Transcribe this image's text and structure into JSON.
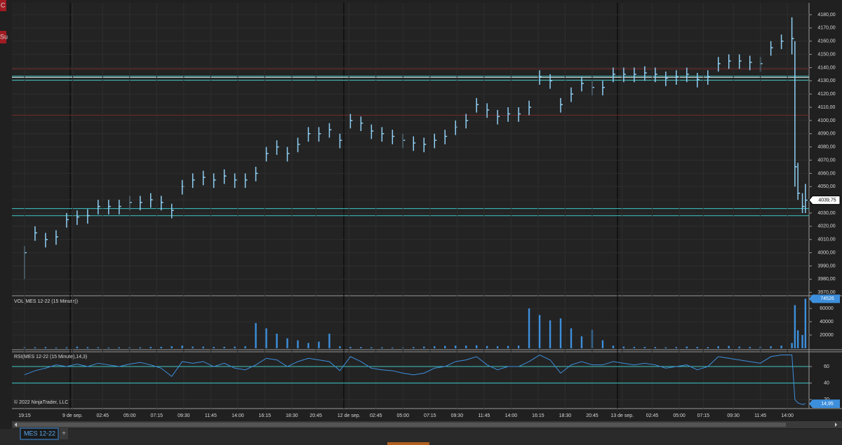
{
  "ui": {
    "tab": "MES 12-22",
    "add_tab": "+",
    "copyright": "© 2022 NinjaTrader, LLC",
    "left_buttons": [
      "C",
      "Su"
    ]
  },
  "chart_data": [
    {
      "type": "ohlc",
      "color": "#8fd0f5",
      "x": [
        0,
        3.5,
        7,
        10.5,
        14,
        17.5,
        21,
        24.5,
        28,
        31.5,
        35,
        38.5,
        42,
        45.5,
        49,
        52.5,
        56,
        59.5,
        63,
        66.5,
        70,
        73.5,
        77,
        80.5,
        84,
        87.5,
        91,
        94.5,
        98,
        101.5,
        105,
        108.5,
        112,
        115.5,
        119,
        122.5,
        126,
        129.5,
        133,
        136.5,
        140,
        143.5,
        147,
        150.5,
        154,
        157.5,
        161,
        164.5,
        168,
        171.5,
        175,
        178.5,
        182,
        185.5,
        189,
        192.5,
        196,
        199.5,
        203,
        206.5,
        210,
        213.5,
        217,
        220.5,
        224,
        227.5,
        231,
        234.5,
        238,
        241.5,
        245,
        248.5,
        252,
        255.5,
        256.5,
        257.5,
        259,
        260
      ],
      "high": [
        4005,
        4020,
        4015,
        4017,
        4030,
        4032,
        4033,
        4040,
        4040,
        4040,
        4043,
        4043,
        4045,
        4043,
        4037,
        4055,
        4060,
        4062,
        4060,
        4063,
        4060,
        4060,
        4065,
        4080,
        4085,
        4080,
        4087,
        4095,
        4095,
        4098,
        4090,
        4105,
        4103,
        4097,
        4095,
        4093,
        4090,
        4088,
        4087,
        4090,
        4093,
        4100,
        4105,
        4117,
        4113,
        4108,
        4110,
        4110,
        4115,
        4138,
        4135,
        4117,
        4125,
        4133,
        4130,
        4130,
        4140,
        4140,
        4140,
        4141,
        4140,
        4137,
        4138,
        4140,
        4136,
        4138,
        4148,
        4150,
        4150,
        4149,
        4148,
        4160,
        4165,
        4178,
        4160,
        4068,
        4045,
        4052
      ],
      "low": [
        3980,
        4009,
        4004,
        4006,
        4019,
        4021,
        4022,
        4029,
        4029,
        4029,
        4032,
        4032,
        4034,
        4032,
        4026,
        4044,
        4049,
        4051,
        4049,
        4052,
        4049,
        4049,
        4054,
        4069,
        4074,
        4069,
        4076,
        4084,
        4084,
        4087,
        4079,
        4094,
        4092,
        4086,
        4084,
        4082,
        4079,
        4077,
        4076,
        4079,
        4082,
        4089,
        4094,
        4106,
        4102,
        4097,
        4099,
        4099,
        4104,
        4127,
        4124,
        4106,
        4114,
        4122,
        4119,
        4119,
        4129,
        4129,
        4129,
        4130,
        4129,
        4126,
        4127,
        4129,
        4125,
        4127,
        4137,
        4139,
        4139,
        4138,
        4137,
        4149,
        4154,
        4150,
        4050,
        4040,
        4030,
        4030
      ],
      "close": [
        4000,
        4015,
        4010,
        4012,
        4025,
        4027,
        4028,
        4035,
        4035,
        4035,
        4038,
        4038,
        4040,
        4038,
        4032,
        4050,
        4055,
        4057,
        4055,
        4058,
        4055,
        4055,
        4060,
        4075,
        4080,
        4075,
        4082,
        4090,
        4090,
        4093,
        4085,
        4100,
        4098,
        4092,
        4090,
        4088,
        4085,
        4083,
        4082,
        4085,
        4088,
        4095,
        4100,
        4112,
        4108,
        4103,
        4105,
        4105,
        4110,
        4133,
        4130,
        4112,
        4120,
        4128,
        4125,
        4125,
        4135,
        4135,
        4135,
        4136,
        4135,
        4132,
        4133,
        4135,
        4131,
        4133,
        4143,
        4145,
        4145,
        4144,
        4143,
        4155,
        4160,
        4162,
        4065,
        4045,
        4035,
        4039.75
      ],
      "current_value": {
        "value": 4039.75,
        "label": "4039,75"
      },
      "levels": [
        {
          "value": 4139,
          "color": "#7a2a2a"
        },
        {
          "value": 4132.6,
          "color": "#e8e8e8"
        },
        {
          "value": 4133.5,
          "color": "#3fc7c7"
        },
        {
          "value": 4130.5,
          "color": "#3fc7c7"
        },
        {
          "value": 4104,
          "color": "#7a2a2a"
        },
        {
          "value": 4033.4,
          "color": "#3fc7c7"
        },
        {
          "value": 4028,
          "color": "#3fc7c7"
        }
      ],
      "xlim": [
        -4.2,
        261.2
      ],
      "ylim": [
        3968,
        4189
      ],
      "yticks": [
        {
          "value": 3970,
          "label": "3970,00"
        },
        {
          "value": 3980,
          "label": "3980,00"
        },
        {
          "value": 3990,
          "label": "3990,00"
        },
        {
          "value": 4000,
          "label": "4000,00"
        },
        {
          "value": 4010,
          "label": "4010,00"
        },
        {
          "value": 4020,
          "label": "4020,00"
        },
        {
          "value": 4030,
          "label": "4030,00"
        },
        {
          "value": 4040,
          "label": "4040,00"
        },
        {
          "value": 4050,
          "label": "4050,00"
        },
        {
          "value": 4060,
          "label": "4060,00"
        },
        {
          "value": 4070,
          "label": "4070,00"
        },
        {
          "value": 4080,
          "label": "4080,00"
        },
        {
          "value": 4090,
          "label": "4090,00"
        },
        {
          "value": 4100,
          "label": "4100,00"
        },
        {
          "value": 4110,
          "label": "4110,00"
        },
        {
          "value": 4120,
          "label": "4120,00"
        },
        {
          "value": 4130,
          "label": "4130,00"
        },
        {
          "value": 4140,
          "label": "4140,00"
        },
        {
          "value": 4150,
          "label": "4150,00"
        },
        {
          "value": 4160,
          "label": "4160,00"
        },
        {
          "value": 4170,
          "label": "4170,00"
        },
        {
          "value": 4180,
          "label": "4180,00"
        }
      ]
    },
    {
      "type": "bar",
      "title": "VOL(MES 12-22 (15 Minute))",
      "color": "#3d8fdc",
      "x": [
        0,
        3.5,
        7,
        10.5,
        14,
        17.5,
        21,
        24.5,
        28,
        31.5,
        35,
        38.5,
        42,
        45.5,
        49,
        52.5,
        56,
        59.5,
        63,
        66.5,
        70,
        73.5,
        77,
        80.5,
        84,
        87.5,
        91,
        94.5,
        98,
        101.5,
        105,
        108.5,
        112,
        115.5,
        119,
        122.5,
        126,
        129.5,
        133,
        136.5,
        140,
        143.5,
        147,
        150.5,
        154,
        157.5,
        161,
        164.5,
        168,
        171.5,
        175,
        178.5,
        182,
        185.5,
        189,
        192.5,
        196,
        199.5,
        203,
        206.5,
        210,
        213.5,
        217,
        220.5,
        224,
        227.5,
        231,
        234.5,
        238,
        241.5,
        245,
        248.5,
        252,
        255.5,
        256.5,
        257.5,
        259,
        260
      ],
      "values": [
        2000,
        1500,
        1800,
        1200,
        1500,
        2500,
        1800,
        1500,
        1200,
        1500,
        1800,
        1500,
        2000,
        2200,
        3000,
        4000,
        2500,
        2500,
        2000,
        2200,
        2500,
        3000,
        38000,
        30000,
        22000,
        15000,
        12000,
        8000,
        10000,
        22000,
        3000,
        2000,
        1800,
        1500,
        1500,
        1200,
        1500,
        1800,
        2500,
        3000,
        3500,
        4000,
        4000,
        4500,
        3500,
        3000,
        3500,
        4000,
        60000,
        50000,
        42000,
        45000,
        30000,
        18000,
        28000,
        12000,
        4000,
        2500,
        2000,
        2000,
        1800,
        1500,
        1800,
        2500,
        2000,
        1800,
        3000,
        3500,
        2500,
        2000,
        2500,
        3000,
        4000,
        8000,
        65000,
        27000,
        20000,
        74526
      ],
      "current_value": 74526,
      "xlim": [
        -4.2,
        261.2
      ],
      "ylim": [
        0,
        77000
      ],
      "yticks": [
        20000,
        40000,
        60000
      ]
    },
    {
      "type": "line",
      "title": "RSI(MES 12-22 (15 Minute),14,3)",
      "color": "#3d8fdc",
      "x": [
        0,
        3.5,
        7,
        10.5,
        14,
        17.5,
        21,
        24.5,
        28,
        31.5,
        35,
        38.5,
        42,
        45.5,
        49,
        52.5,
        56,
        59.5,
        63,
        66.5,
        70,
        73.5,
        77,
        80.5,
        84,
        87.5,
        91,
        94.5,
        98,
        101.5,
        105,
        108.5,
        112,
        115.5,
        119,
        122.5,
        126,
        129.5,
        133,
        136.5,
        140,
        143.5,
        147,
        150.5,
        154,
        157.5,
        161,
        164.5,
        168,
        171.5,
        175,
        178.5,
        182,
        185.5,
        189,
        192.5,
        196,
        199.5,
        203,
        206.5,
        210,
        213.5,
        217,
        220.5,
        224,
        227.5,
        231,
        234.5,
        238,
        241.5,
        245,
        248.5,
        252,
        255.5,
        256.5,
        257.5,
        259,
        260
      ],
      "values": [
        50,
        55,
        58,
        62,
        60,
        63,
        60,
        64,
        62,
        60,
        63,
        65,
        62,
        58,
        48,
        66,
        64,
        66,
        60,
        64,
        58,
        56,
        62,
        70,
        68,
        60,
        66,
        70,
        68,
        66,
        55,
        72,
        66,
        58,
        56,
        55,
        52,
        50,
        52,
        58,
        60,
        66,
        68,
        72,
        62,
        56,
        60,
        60,
        66,
        74,
        68,
        52,
        62,
        66,
        62,
        62,
        66,
        64,
        62,
        64,
        62,
        58,
        60,
        62,
        56,
        60,
        72,
        70,
        68,
        66,
        64,
        72,
        74,
        74,
        20,
        16,
        14,
        14.95
      ],
      "current_value": {
        "value": 14.95,
        "label": "14,95"
      },
      "levels": [
        {
          "value": 60,
          "color": "#3fc7c7"
        },
        {
          "value": 40,
          "color": "#3fc7c7"
        }
      ],
      "xlim": [
        -4.2,
        261.2
      ],
      "ylim": [
        10,
        77
      ],
      "yticks": [
        20,
        40,
        60
      ],
      "xticks": [
        {
          "value": 0,
          "label": "19:15"
        },
        {
          "value": 16,
          "label": "9 de sep."
        },
        {
          "value": 26,
          "label": "02:45"
        },
        {
          "value": 35,
          "label": "05:00"
        },
        {
          "value": 44,
          "label": "07:15"
        },
        {
          "value": 53,
          "label": "09:30"
        },
        {
          "value": 62,
          "label": "11:45"
        },
        {
          "value": 71,
          "label": "14:00"
        },
        {
          "value": 80,
          "label": "16:15"
        },
        {
          "value": 89,
          "label": "18:30"
        },
        {
          "value": 97,
          "label": "20:45"
        },
        {
          "value": 108,
          "label": "12 de sep."
        },
        {
          "value": 117,
          "label": "02:45"
        },
        {
          "value": 126,
          "label": "05:00"
        },
        {
          "value": 135,
          "label": "07:15"
        },
        {
          "value": 144,
          "label": "09:30"
        },
        {
          "value": 153,
          "label": "11:45"
        },
        {
          "value": 162,
          "label": "14:00"
        },
        {
          "value": 171,
          "label": "16:15"
        },
        {
          "value": 180,
          "label": "18:30"
        },
        {
          "value": 189,
          "label": "20:45"
        },
        {
          "value": 199,
          "label": "13 de sep."
        },
        {
          "value": 209,
          "label": "02:45"
        },
        {
          "value": 218,
          "label": "05:00"
        },
        {
          "value": 226,
          "label": "07:15"
        },
        {
          "value": 236,
          "label": "09:30"
        },
        {
          "value": 245,
          "label": "11:45"
        },
        {
          "value": 254,
          "label": "14:00"
        }
      ]
    }
  ]
}
